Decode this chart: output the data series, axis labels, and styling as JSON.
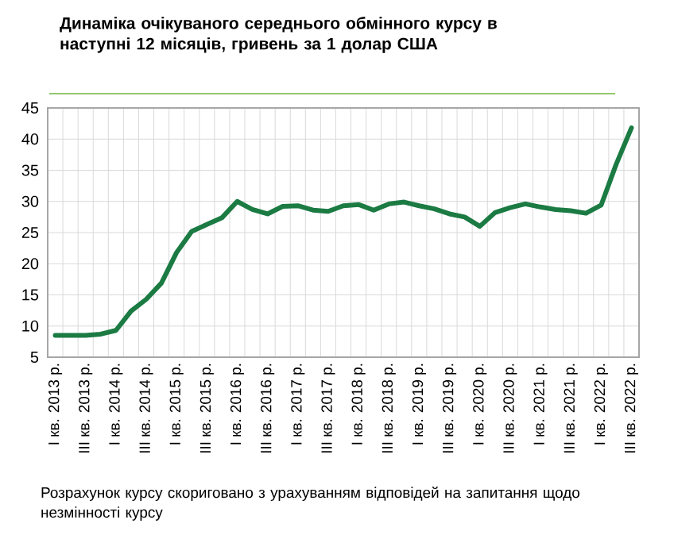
{
  "chart_data": {
    "type": "line",
    "title": "Динаміка очікуваного середнього обмінного курсу в наступні 12 місяців, гривень за 1 долар США",
    "annotations": [
      "Розрахунок курсу скориговано з урахуванням відповідей на запитання щодо незмінності курсу"
    ],
    "categories": [
      "I кв. 2013 р.",
      null,
      "III кв. 2013 р.",
      null,
      "I кв. 2014 р.",
      null,
      "III кв. 2014 р.",
      null,
      "I кв. 2015 р.",
      null,
      "III кв. 2015 р.",
      null,
      "I кв. 2016 р.",
      null,
      "III кв. 2016 р.",
      null,
      "I кв. 2017 р.",
      null,
      "III кв. 2017 р.",
      null,
      "I кв. 2018 р.",
      null,
      "III кв. 2018 р.",
      null,
      "I кв. 2019 р.",
      null,
      "III кв. 2019 р.",
      null,
      "I кв. 2020 р.",
      null,
      "III кв. 2020 р.",
      null,
      "I кв. 2021 р.",
      null,
      "III кв. 2021 р.",
      null,
      "I кв. 2022 р.",
      null,
      "III кв. 2022 р."
    ],
    "values": [
      8.5,
      8.5,
      8.5,
      8.7,
      9.3,
      12.4,
      14.3,
      16.9,
      21.8,
      25.2,
      26.3,
      27.4,
      30.0,
      28.7,
      28.0,
      29.2,
      29.3,
      28.6,
      28.4,
      29.3,
      29.5,
      28.6,
      29.6,
      29.9,
      29.3,
      28.8,
      28.0,
      27.5,
      26.0,
      28.2,
      29.0,
      29.6,
      29.1,
      28.7,
      28.5,
      28.1,
      29.4,
      36.0,
      41.8
    ],
    "color": "#1b7b43",
    "ylim": [
      5,
      45
    ],
    "yticks": [
      5,
      10,
      15,
      20,
      25,
      30,
      35,
      40,
      45
    ],
    "grid": true,
    "marker": "none",
    "line_style": "solid"
  }
}
